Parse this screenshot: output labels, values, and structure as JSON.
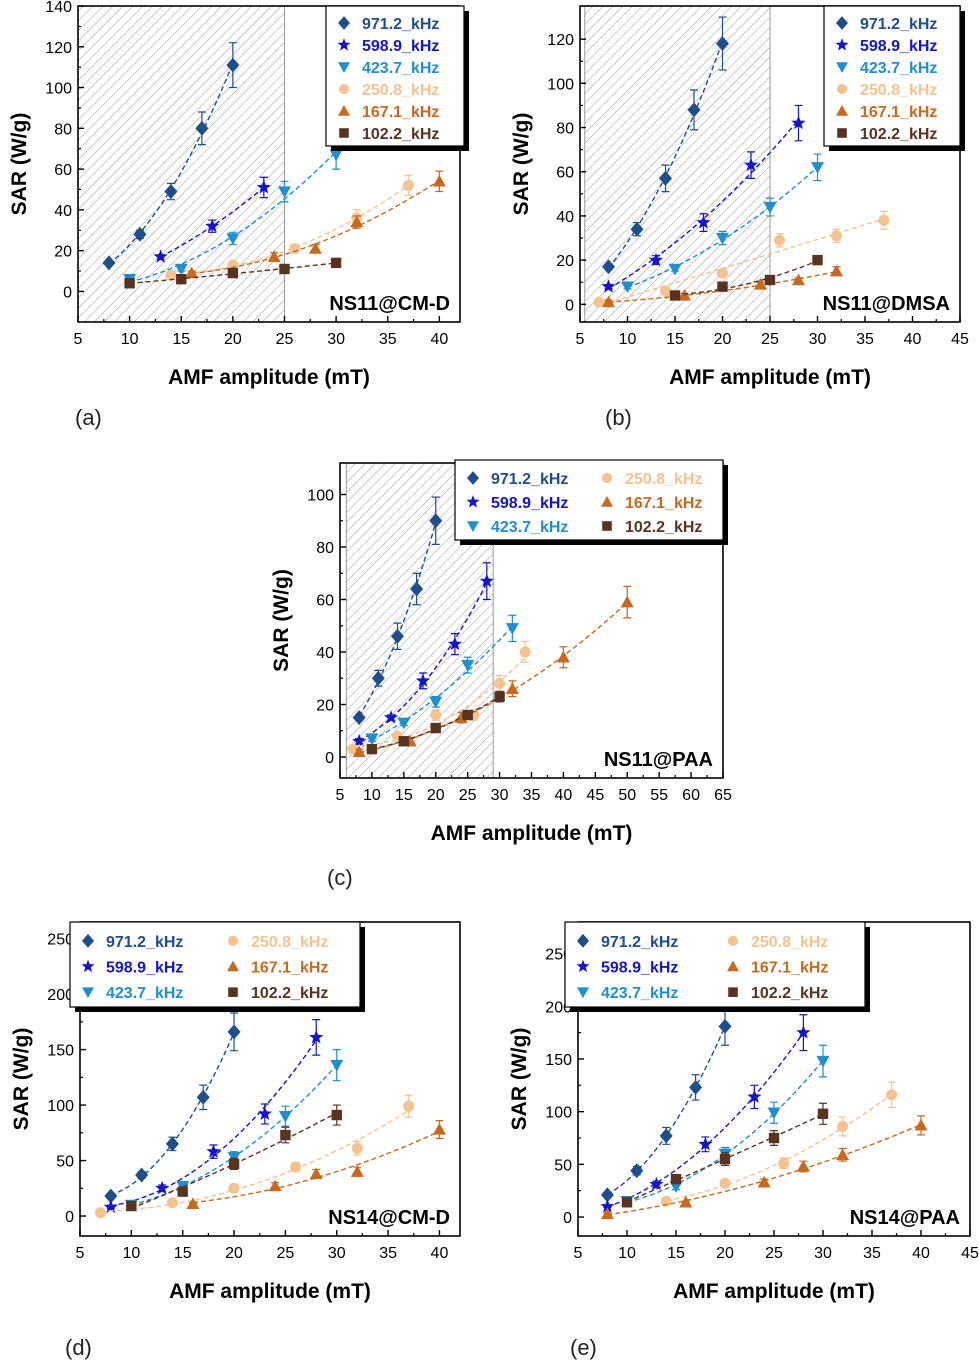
{
  "series_style": {
    "971.2_kHz": {
      "color": "#1f4e8c",
      "marker": "diamond"
    },
    "598.9_kHz": {
      "color": "#1414cc",
      "marker": "star"
    },
    "423.7_kHz": {
      "color": "#1f8fd0",
      "marker": "triangle-down"
    },
    "250.8_kHz": {
      "color": "#f5c38f",
      "marker": "circle"
    },
    "167.1_kHz": {
      "color": "#c8691d",
      "marker": "triangle-up"
    },
    "102.2_kHz": {
      "color": "#5a3320",
      "marker": "square"
    }
  },
  "captions": {
    "a": "(a)",
    "b": "(b)",
    "c": "(c)",
    "d": "(d)",
    "e": "(e)"
  },
  "chart_data": [
    {
      "id": "a",
      "type": "scatter",
      "annotation": "NS11@CM-D",
      "xlabel": "AMF amplitude (mT)",
      "ylabel": "SAR (W/g)",
      "xlim": [
        5,
        42
      ],
      "ylim": [
        -15,
        140
      ],
      "xticks": [
        5,
        10,
        15,
        20,
        25,
        30,
        35,
        40
      ],
      "yticks": [
        0,
        20,
        40,
        60,
        80,
        100,
        120,
        140
      ],
      "hatch_region": [
        5,
        25
      ],
      "legend": {
        "placement": "top-right",
        "columns": 1
      },
      "series": [
        {
          "name": "971.2_kHz",
          "x": [
            8,
            11,
            14,
            17,
            20
          ],
          "y": [
            14,
            28,
            49,
            80,
            111
          ],
          "err": [
            1,
            2,
            4,
            8,
            11
          ]
        },
        {
          "name": "598.9_kHz",
          "x": [
            13,
            18,
            23
          ],
          "y": [
            17,
            32,
            51
          ],
          "err": [
            1,
            3,
            5
          ]
        },
        {
          "name": "423.7_kHz",
          "x": [
            10,
            15,
            20,
            25,
            30
          ],
          "y": [
            6,
            11,
            26,
            49,
            67
          ],
          "err": [
            1,
            1,
            3,
            5,
            7
          ]
        },
        {
          "name": "250.8_kHz",
          "x": [
            14,
            20,
            26,
            32,
            37
          ],
          "y": [
            8,
            13,
            21,
            36,
            52
          ],
          "err": [
            1,
            1,
            2,
            4,
            5
          ]
        },
        {
          "name": "167.1_kHz",
          "x": [
            16,
            24,
            28,
            32,
            40
          ],
          "y": [
            9,
            17,
            21,
            34,
            54
          ],
          "err": [
            1,
            2,
            2,
            3,
            5
          ]
        },
        {
          "name": "102.2_kHz",
          "x": [
            10,
            15,
            20,
            25,
            30
          ],
          "y": [
            4,
            6,
            9,
            11,
            14
          ],
          "err": [
            1,
            1,
            1,
            1,
            1
          ]
        }
      ]
    },
    {
      "id": "b",
      "type": "scatter",
      "annotation": "NS11@DMSA",
      "xlabel": "AMF amplitude (mT)",
      "ylabel": "SAR (W/g)",
      "xlim": [
        5,
        45
      ],
      "ylim": [
        -8,
        135
      ],
      "xticks": [
        5,
        10,
        15,
        20,
        25,
        30,
        35,
        40,
        45
      ],
      "yticks": [
        0,
        20,
        40,
        60,
        80,
        100,
        120
      ],
      "hatch_region": [
        5.5,
        25
      ],
      "legend": {
        "placement": "top-right",
        "columns": 1
      },
      "series": [
        {
          "name": "971.2_kHz",
          "x": [
            8,
            11,
            14,
            17,
            20
          ],
          "y": [
            17,
            34,
            57,
            88,
            118
          ],
          "err": [
            1,
            3,
            6,
            9,
            12
          ]
        },
        {
          "name": "598.9_kHz",
          "x": [
            8,
            13,
            18,
            23,
            28
          ],
          "y": [
            8,
            20,
            37,
            63,
            82
          ],
          "err": [
            1,
            2,
            4,
            6,
            8
          ]
        },
        {
          "name": "423.7_kHz",
          "x": [
            10,
            15,
            20,
            25,
            30
          ],
          "y": [
            8,
            16,
            30,
            44,
            62
          ],
          "err": [
            1,
            1,
            3,
            4,
            6
          ]
        },
        {
          "name": "250.8_kHz",
          "x": [
            7,
            14,
            20,
            26,
            32,
            37
          ],
          "y": [
            1,
            6,
            14,
            29,
            31,
            38
          ],
          "err": [
            1,
            1,
            1,
            3,
            3,
            4
          ]
        },
        {
          "name": "167.1_kHz",
          "x": [
            8,
            16,
            24,
            28,
            32
          ],
          "y": [
            1,
            4,
            9,
            11,
            15
          ],
          "err": [
            1,
            1,
            1,
            1,
            2
          ]
        },
        {
          "name": "102.2_kHz",
          "x": [
            15,
            20,
            25,
            30
          ],
          "y": [
            4,
            8,
            11,
            20
          ],
          "err": [
            1,
            1,
            1,
            2
          ]
        }
      ]
    },
    {
      "id": "c",
      "type": "scatter",
      "annotation": "NS11@PAA",
      "xlabel": "AMF amplitude (mT)",
      "ylabel": "SAR (W/g)",
      "xlim": [
        5,
        65
      ],
      "ylim": [
        -8,
        112
      ],
      "xticks": [
        5,
        10,
        15,
        20,
        25,
        30,
        35,
        40,
        45,
        50,
        55,
        60,
        65
      ],
      "yticks": [
        0,
        20,
        40,
        60,
        80,
        100
      ],
      "hatch_region": [
        6,
        29
      ],
      "legend": {
        "placement": "top-right",
        "columns": 2
      },
      "series": [
        {
          "name": "971.2_kHz",
          "x": [
            8,
            11,
            14,
            17,
            20
          ],
          "y": [
            15,
            30,
            46,
            64,
            90
          ],
          "err": [
            1,
            3,
            5,
            6,
            9
          ]
        },
        {
          "name": "598.9_kHz",
          "x": [
            8,
            13,
            18,
            23,
            28
          ],
          "y": [
            6,
            15,
            29,
            43,
            67
          ],
          "err": [
            1,
            1,
            3,
            4,
            7
          ]
        },
        {
          "name": "423.7_kHz",
          "x": [
            10,
            15,
            20,
            25,
            32
          ],
          "y": [
            7,
            13,
            21,
            35,
            49
          ],
          "err": [
            1,
            1,
            2,
            3,
            5
          ]
        },
        {
          "name": "250.8_kHz",
          "x": [
            7,
            14,
            20,
            26,
            30,
            34
          ],
          "y": [
            3,
            8,
            16,
            16,
            28,
            40
          ],
          "err": [
            1,
            1,
            2,
            2,
            3,
            4
          ]
        },
        {
          "name": "167.1_kHz",
          "x": [
            8,
            16,
            24,
            32,
            40,
            50
          ],
          "y": [
            2,
            6,
            15,
            26,
            38,
            59
          ],
          "err": [
            1,
            1,
            2,
            3,
            4,
            6
          ]
        },
        {
          "name": "102.2_kHz",
          "x": [
            10,
            15,
            20,
            25,
            30
          ],
          "y": [
            3,
            6,
            11,
            16,
            23
          ],
          "err": [
            1,
            1,
            1,
            1,
            2
          ]
        }
      ]
    },
    {
      "id": "d",
      "type": "scatter",
      "annotation": "NS14@CM-D",
      "xlabel": "AMF amplitude (mT)",
      "ylabel": "SAR (W/g)",
      "xlim": [
        5,
        42
      ],
      "ylim": [
        -18,
        265
      ],
      "xticks": [
        5,
        10,
        15,
        20,
        25,
        30,
        35,
        40
      ],
      "yticks": [
        0,
        50,
        100,
        150,
        200,
        250
      ],
      "legend": {
        "placement": "top-left",
        "columns": 2
      },
      "series": [
        {
          "name": "971.2_kHz",
          "x": [
            8,
            11,
            14,
            17,
            20
          ],
          "y": [
            18,
            37,
            65,
            107,
            166
          ],
          "err": [
            2,
            3,
            6,
            11,
            17
          ]
        },
        {
          "name": "598.9_kHz",
          "x": [
            8,
            13,
            18,
            23,
            28
          ],
          "y": [
            8,
            25,
            58,
            92,
            161
          ],
          "err": [
            1,
            3,
            6,
            9,
            16
          ]
        },
        {
          "name": "423.7_kHz",
          "x": [
            10,
            15,
            20,
            25,
            30
          ],
          "y": [
            10,
            27,
            53,
            90,
            136
          ],
          "err": [
            1,
            3,
            5,
            9,
            14
          ]
        },
        {
          "name": "250.8_kHz",
          "x": [
            7,
            14,
            20,
            26,
            32,
            37
          ],
          "y": [
            3,
            12,
            25,
            44,
            61,
            99
          ],
          "err": [
            1,
            1,
            2,
            4,
            6,
            10
          ]
        },
        {
          "name": "167.1_kHz",
          "x": [
            16,
            24,
            28,
            32,
            40
          ],
          "y": [
            11,
            27,
            38,
            40,
            78
          ],
          "err": [
            1,
            3,
            4,
            4,
            8
          ]
        },
        {
          "name": "102.2_kHz",
          "x": [
            10,
            15,
            20,
            25,
            30
          ],
          "y": [
            9,
            22,
            47,
            73,
            91
          ],
          "err": [
            1,
            2,
            5,
            7,
            9
          ]
        }
      ]
    },
    {
      "id": "e",
      "type": "scatter",
      "annotation": "NS14@PAA",
      "xlabel": "AMF amplitude (mT)",
      "ylabel": "SAR (W/g)",
      "xlim": [
        5,
        45
      ],
      "ylim": [
        -18,
        280
      ],
      "xticks": [
        5,
        10,
        15,
        20,
        25,
        30,
        35,
        40,
        45
      ],
      "yticks": [
        0,
        50,
        100,
        150,
        200,
        250
      ],
      "legend": {
        "placement": "top-left",
        "columns": 2
      },
      "series": [
        {
          "name": "971.2_kHz",
          "x": [
            8,
            11,
            14,
            17,
            20
          ],
          "y": [
            21,
            44,
            77,
            123,
            181
          ],
          "err": [
            2,
            4,
            8,
            12,
            18
          ]
        },
        {
          "name": "598.9_kHz",
          "x": [
            8,
            13,
            18,
            23,
            28
          ],
          "y": [
            10,
            31,
            69,
            114,
            175
          ],
          "err": [
            1,
            3,
            7,
            11,
            17
          ]
        },
        {
          "name": "423.7_kHz",
          "x": [
            10,
            15,
            20,
            25,
            30
          ],
          "y": [
            15,
            29,
            60,
            99,
            148
          ],
          "err": [
            1,
            3,
            6,
            10,
            15
          ]
        },
        {
          "name": "250.8_kHz",
          "x": [
            14,
            20,
            26,
            32,
            37
          ],
          "y": [
            15,
            32,
            51,
            86,
            116
          ],
          "err": [
            1,
            3,
            5,
            9,
            12
          ]
        },
        {
          "name": "167.1_kHz",
          "x": [
            8,
            16,
            24,
            28,
            32,
            40
          ],
          "y": [
            3,
            14,
            33,
            48,
            59,
            87
          ],
          "err": [
            1,
            1,
            3,
            5,
            6,
            9
          ]
        },
        {
          "name": "102.2_kHz",
          "x": [
            10,
            15,
            20,
            25,
            30
          ],
          "y": [
            14,
            36,
            55,
            75,
            98
          ],
          "err": [
            1,
            4,
            6,
            7,
            10
          ]
        }
      ]
    }
  ]
}
